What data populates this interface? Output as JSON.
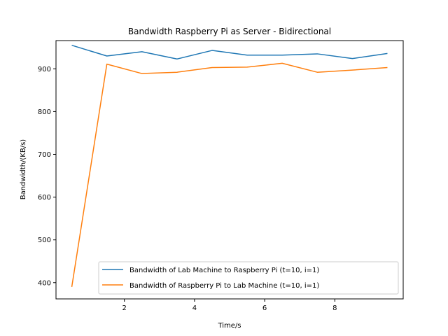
{
  "chart_data": {
    "type": "line",
    "title": "Bandwidth Raspberry Pi as Server - Bidirectional",
    "xlabel": "Time/s",
    "ylabel": "Bandwidth/(KB/s)",
    "xlim": [
      0.05,
      9.95
    ],
    "ylim": [
      362,
      966
    ],
    "xticks": [
      2,
      4,
      6,
      8
    ],
    "yticks": [
      400,
      500,
      600,
      700,
      800,
      900
    ],
    "grid": false,
    "legend_position": "lower-right",
    "series": [
      {
        "name": "Bandwidth of Lab Machine to Raspberry Pi (t=10, i=1)",
        "color": "#1f77b4",
        "x": [
          0.5,
          1.5,
          2.5,
          3.5,
          4.5,
          5.5,
          6.5,
          7.5,
          8.5,
          9.5
        ],
        "y": [
          955,
          930,
          940,
          923,
          943,
          932,
          932,
          935,
          924,
          936
        ]
      },
      {
        "name": "Bandwidth of Raspberry Pi to Lab Machine (t=10, i=1)",
        "color": "#ff7f0e",
        "x": [
          0.5,
          1.5,
          2.5,
          3.5,
          4.5,
          5.5,
          6.5,
          7.5,
          8.5,
          9.5
        ],
        "y": [
          390,
          911,
          889,
          892,
          903,
          904,
          913,
          892,
          897,
          903
        ]
      }
    ]
  }
}
